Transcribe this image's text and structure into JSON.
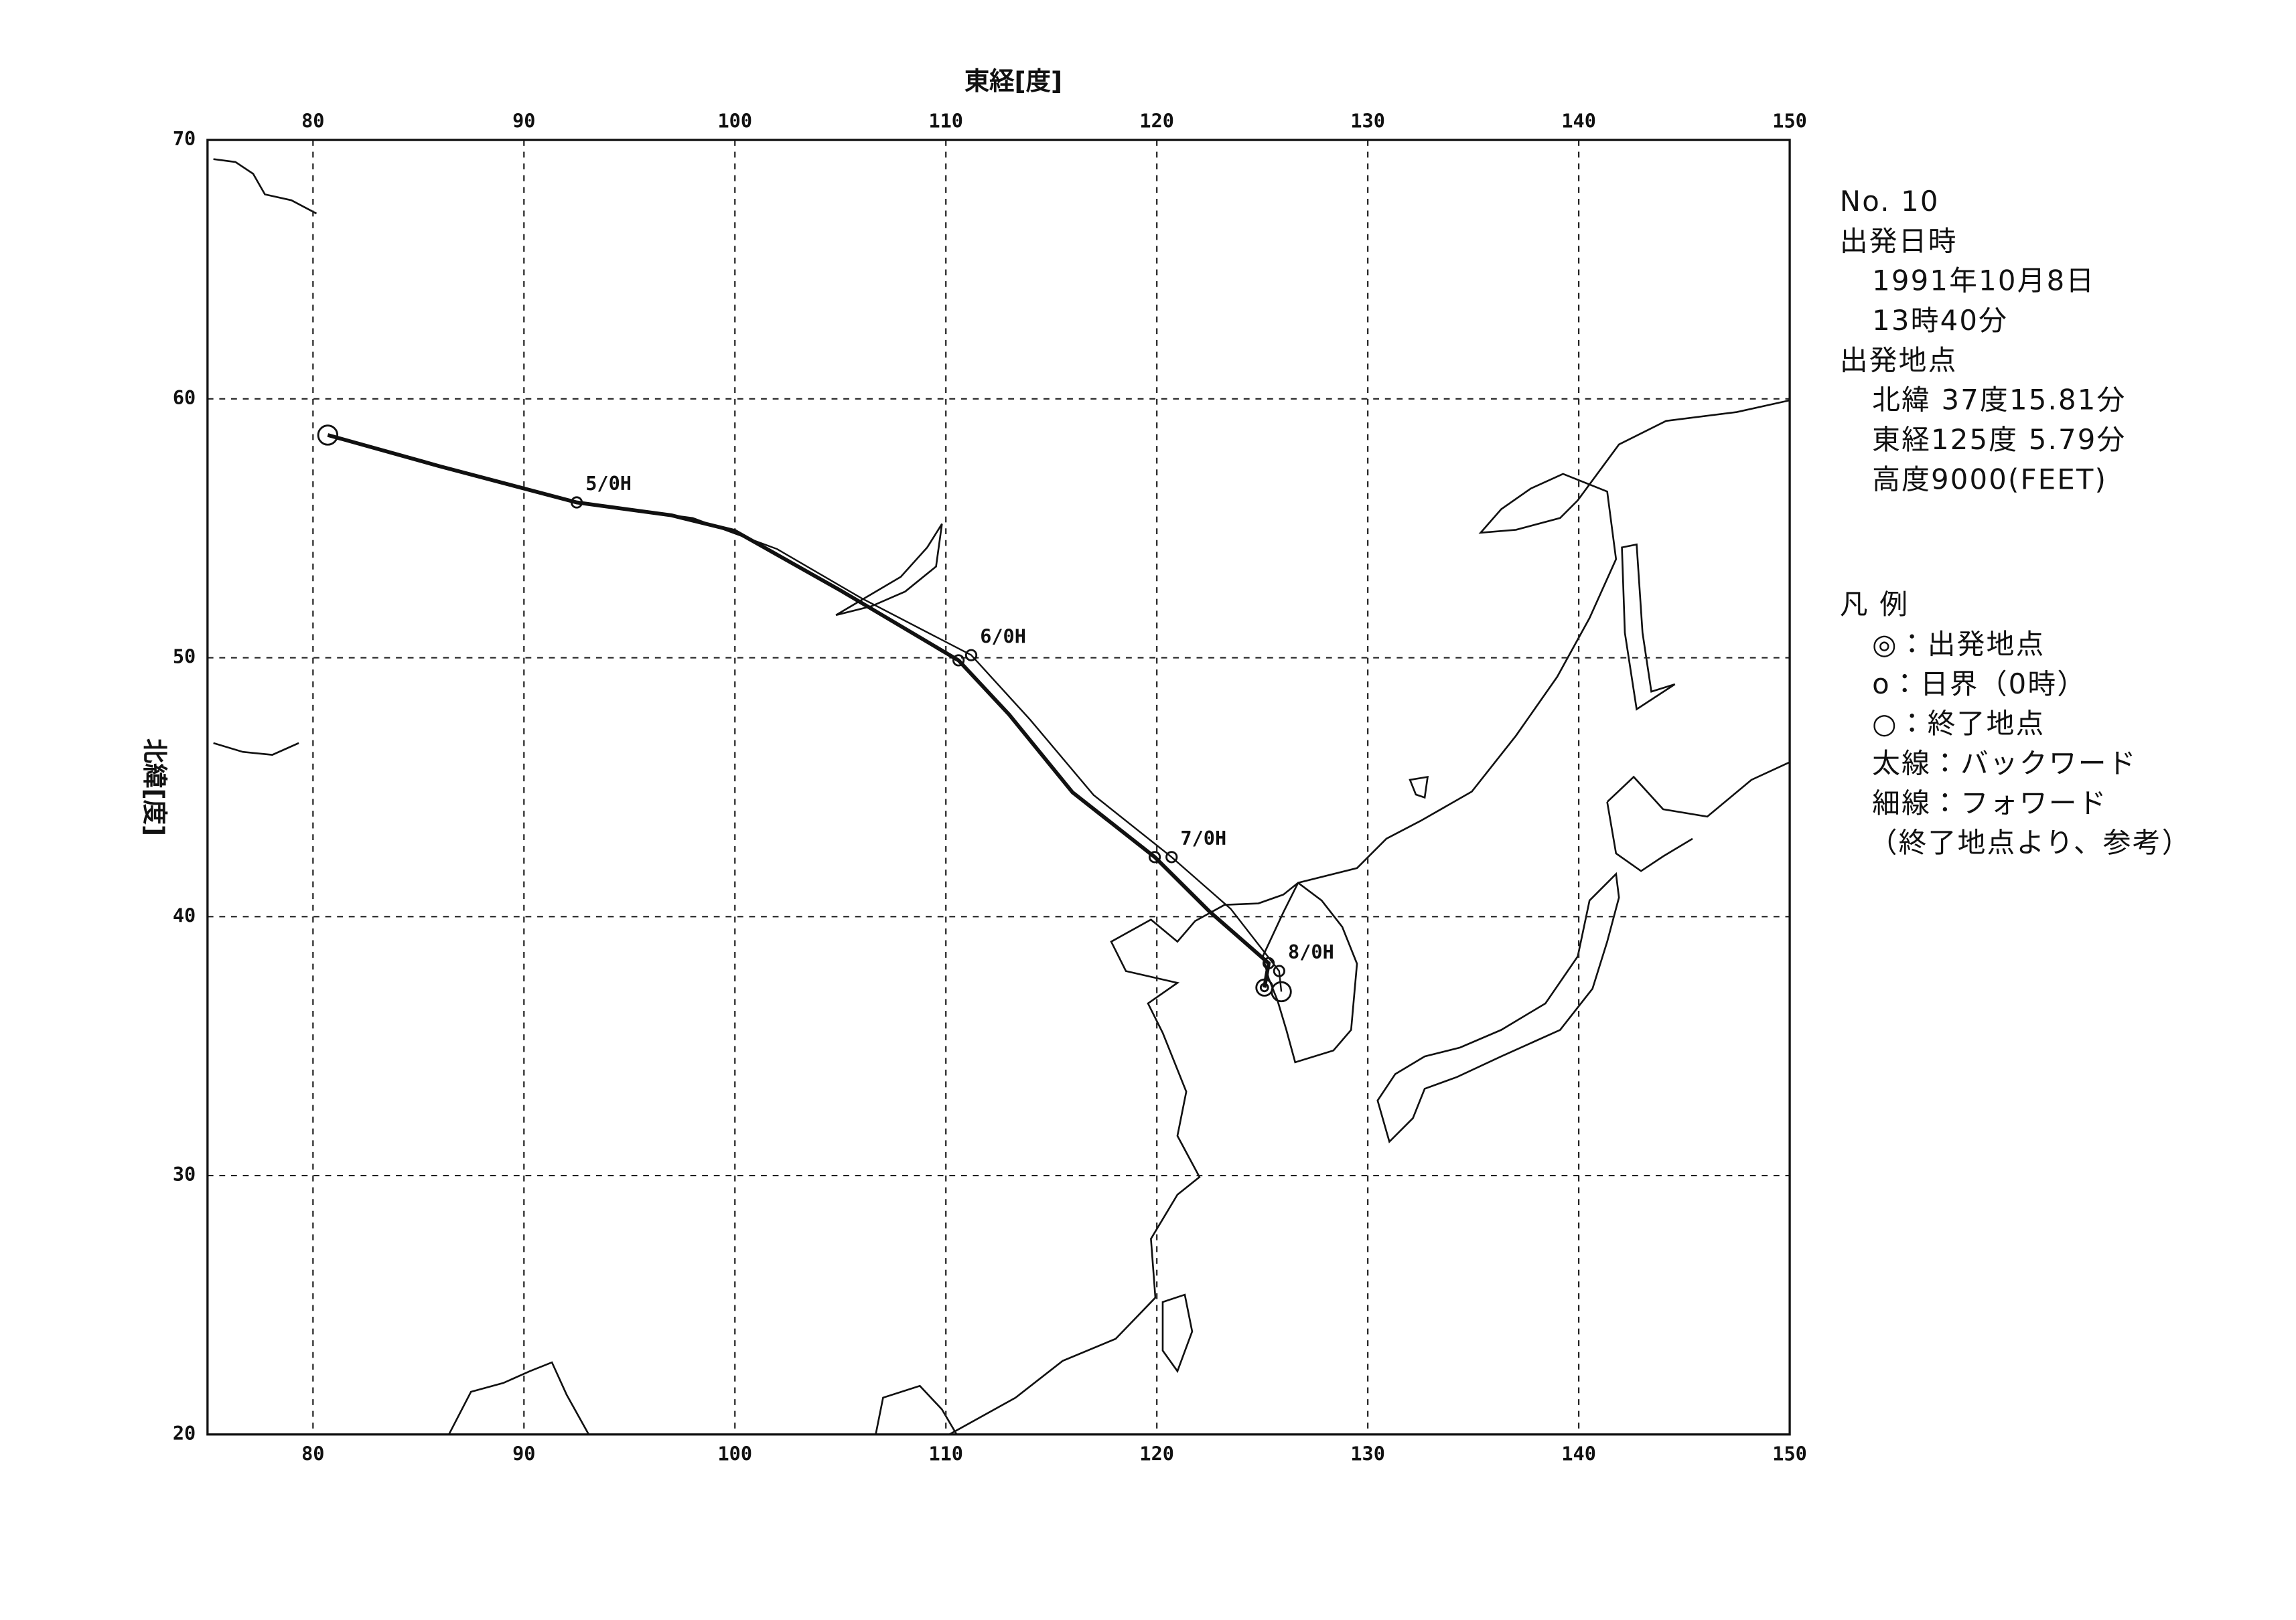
{
  "chart_data": {
    "type": "trajectory",
    "xlabel": "東経[度]",
    "ylabel": "北緯[度]",
    "xlim": [
      75,
      150
    ],
    "ylim": [
      20,
      70
    ],
    "xticks": [
      80,
      90,
      100,
      110,
      120,
      130,
      140,
      150
    ],
    "yticks": [
      20,
      30,
      40,
      50,
      60,
      70
    ],
    "grid": true,
    "start": {
      "x": 125.1,
      "y": 37.26
    },
    "series": [
      {
        "name": "バックワード",
        "width": "thick",
        "color": "#111111",
        "x": [
          125.1,
          125.3,
          122.5,
          119.9,
          116,
          113,
          110.6,
          105,
          100,
          97,
          92.5,
          86,
          80.7
        ],
        "values": [
          37.26,
          38.2,
          40.2,
          42.3,
          44.8,
          47.8,
          49.9,
          52.6,
          54.9,
          55.5,
          56.0,
          57.4,
          58.6
        ],
        "day_points": [
          {
            "x": 92.5,
            "y": 56.0,
            "label": "5/0H"
          },
          {
            "x": 110.6,
            "y": 49.9
          },
          {
            "x": 119.9,
            "y": 42.3
          },
          {
            "x": 125.3,
            "y": 38.2
          }
        ],
        "end": {
          "x": 80.7,
          "y": 58.6
        }
      },
      {
        "name": "フォワード",
        "width": "thin",
        "color": "#111111",
        "x": [
          80.7,
          92.5,
          98,
          102,
          106,
          111.2,
          114,
          117,
          120.7,
          123.5,
          125.8,
          125.9
        ],
        "values": [
          58.6,
          56.0,
          55.4,
          54.2,
          52.3,
          50.1,
          47.6,
          44.7,
          42.3,
          40.3,
          37.9,
          37.1
        ],
        "day_points": [
          {
            "x": 111.2,
            "y": 50.1,
            "label": "6/0H"
          },
          {
            "x": 120.7,
            "y": 42.3,
            "label": "7/0H"
          },
          {
            "x": 125.8,
            "y": 37.9,
            "label": "8/0H"
          }
        ],
        "end": {
          "x": 125.9,
          "y": 37.1
        }
      }
    ],
    "info": [
      "No. 10",
      "出発日時",
      "1991年10月8日",
      "13時40分",
      "出発地点",
      "北緯 37度15.81分",
      "東経125度 5.79分",
      "高度9000(FEET)"
    ],
    "legend_title": "凡 例",
    "legend_items": [
      "◎：出発地点",
      "o：日界（0時）",
      "○：終了地点",
      "太線：バックワード",
      "細線：フォワード",
      "（終了地点より、参考）"
    ]
  }
}
